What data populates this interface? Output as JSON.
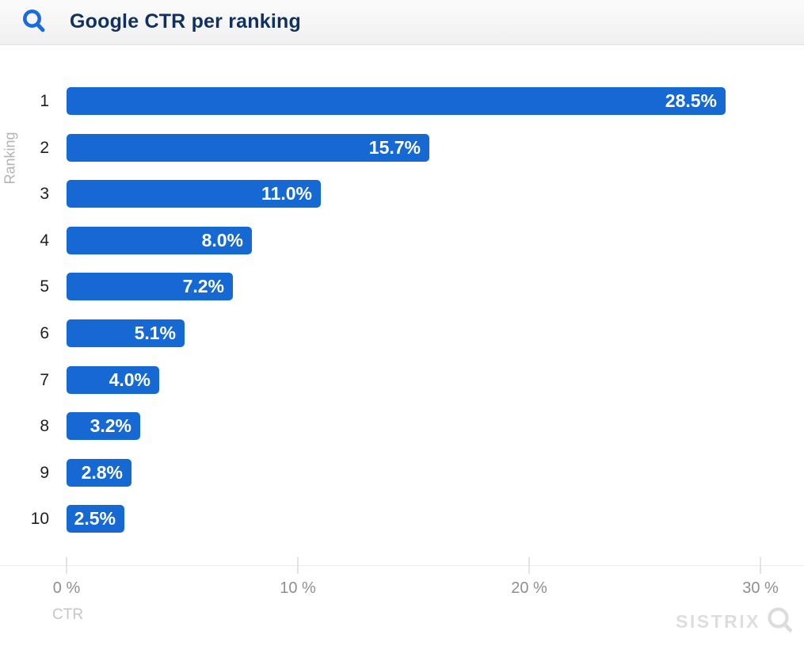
{
  "header": {
    "title": "Google CTR per ranking",
    "icon": "magnifier-icon"
  },
  "colors": {
    "bar": "#1668d3",
    "title": "#10305f",
    "header_icon": "#1b6be0",
    "value_text": "#ffffff",
    "axis_text": "#8f8f8f",
    "muted_text": "#b3b3b3",
    "watermark": "#dedede"
  },
  "chart_data": {
    "type": "bar",
    "orientation": "horizontal",
    "title": "Google CTR per ranking",
    "categories": [
      "1",
      "2",
      "3",
      "4",
      "5",
      "6",
      "7",
      "8",
      "9",
      "10"
    ],
    "values": [
      28.5,
      15.7,
      11.0,
      8.0,
      7.2,
      5.1,
      4.0,
      3.2,
      2.8,
      2.5
    ],
    "value_labels": [
      "28.5%",
      "15.7%",
      "11.0%",
      "8.0%",
      "7.2%",
      "5.1%",
      "4.0%",
      "3.2%",
      "2.8%",
      "2.5%"
    ],
    "xlabel": "CTR",
    "ylabel": "Ranking",
    "xlim": [
      0,
      31.8
    ],
    "x_ticks": [
      {
        "label": "0 %",
        "value": 0
      },
      {
        "label": "10 %",
        "value": 10
      },
      {
        "label": "20 %",
        "value": 20
      },
      {
        "label": "30 %",
        "value": 30
      }
    ],
    "grid": false,
    "legend": false
  },
  "watermark": {
    "text": "SISTRIX",
    "icon": "magnifier-icon"
  }
}
